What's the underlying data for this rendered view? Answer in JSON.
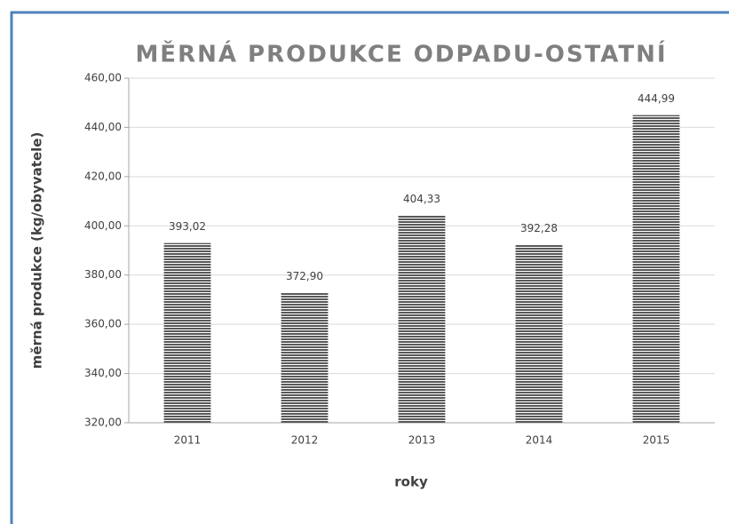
{
  "chart_data": {
    "type": "bar",
    "title": "MĚRNÁ PRODUKCE ODPADU-OSTATNÍ",
    "x_label": "roky",
    "y_label": "měrná produkce (kg/obyvatele)",
    "categories": [
      "2011",
      "2012",
      "2013",
      "2014",
      "2015"
    ],
    "values": [
      393.02,
      372.9,
      404.33,
      392.28,
      444.99
    ],
    "value_labels": [
      "393,02",
      "372,90",
      "404,33",
      "392,28",
      "444,99"
    ],
    "color": "#595959",
    "ylim": [
      320,
      460
    ],
    "yticks": [
      {
        "value": 320,
        "label": "320,00"
      },
      {
        "value": 340,
        "label": "340,00"
      },
      {
        "value": 360,
        "label": "360,00"
      },
      {
        "value": 380,
        "label": "380,00"
      },
      {
        "value": 400,
        "label": "400,00"
      },
      {
        "value": 420,
        "label": "420,00"
      },
      {
        "value": 440,
        "label": "440,00"
      },
      {
        "value": 460,
        "label": "460,00"
      }
    ],
    "grid": true
  }
}
